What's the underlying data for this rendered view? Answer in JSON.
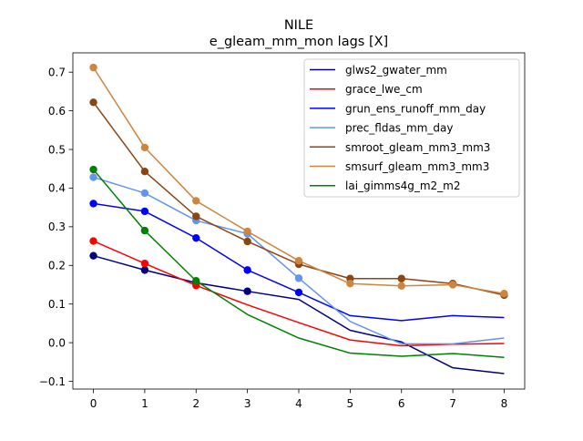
{
  "chart_data": {
    "type": "line",
    "title": "NILE",
    "subtitle": "e_gleam_mm_mon lags [X]",
    "x": [
      0,
      1,
      2,
      3,
      4,
      5,
      6,
      7,
      8
    ],
    "xlim": [
      -0.4,
      8.4
    ],
    "ylim": [
      -0.12,
      0.75
    ],
    "xticks": [
      0,
      1,
      2,
      3,
      4,
      5,
      6,
      7,
      8
    ],
    "yticks": [
      -0.1,
      0.0,
      0.1,
      0.2,
      0.3,
      0.4,
      0.5,
      0.6,
      0.7
    ],
    "ytick_labels": [
      "−0.1",
      "0.0",
      "0.1",
      "0.2",
      "0.3",
      "0.4",
      "0.5",
      "0.6",
      "0.7"
    ],
    "grid": false,
    "legend_position": "top-right",
    "series": [
      {
        "name": "glws2_gwater_mm",
        "color": "#000080",
        "values": [
          0.225,
          0.188,
          0.155,
          0.133,
          0.112,
          0.032,
          0.002,
          -0.065,
          -0.08
        ],
        "markers": [
          0,
          1,
          2,
          3
        ]
      },
      {
        "name": "grace_lwe_cm",
        "color": "#ff0000",
        "values": [
          0.263,
          0.205,
          0.148,
          0.098,
          0.052,
          0.007,
          -0.008,
          -0.004,
          -0.002
        ],
        "markers": [
          0,
          1,
          2
        ]
      },
      {
        "name": "grun_ens_runoff_mm_day",
        "color": "#0000ff",
        "values": [
          0.36,
          0.34,
          0.271,
          0.188,
          0.13,
          0.07,
          0.057,
          0.07,
          0.065
        ],
        "markers": [
          0,
          1,
          2,
          3,
          4
        ]
      },
      {
        "name": "prec_fldas_mm_day",
        "color": "#6495ed",
        "values": [
          0.428,
          0.387,
          0.316,
          0.282,
          0.167,
          0.055,
          -0.003,
          -0.003,
          0.012
        ],
        "markers": [
          0,
          1,
          2,
          3,
          4
        ]
      },
      {
        "name": "smroot_gleam_mm3_mm3",
        "color": "#8b4513",
        "values": [
          0.622,
          0.443,
          0.327,
          0.262,
          0.203,
          0.166,
          0.166,
          0.153,
          0.123
        ],
        "markers": [
          0,
          1,
          2,
          3,
          4,
          5,
          6,
          7,
          8
        ]
      },
      {
        "name": "smsurf_gleam_mm3_mm3",
        "color": "#cd853f",
        "values": [
          0.712,
          0.505,
          0.367,
          0.288,
          0.212,
          0.153,
          0.147,
          0.15,
          0.127
        ],
        "markers": [
          0,
          1,
          2,
          3,
          4,
          5,
          6,
          7,
          8
        ]
      },
      {
        "name": "lai_gimms4g_m2_m2",
        "color": "#008000",
        "values": [
          0.448,
          0.29,
          0.16,
          0.073,
          0.012,
          -0.027,
          -0.035,
          -0.028,
          -0.038
        ],
        "markers": [
          0,
          1,
          2
        ]
      }
    ]
  }
}
